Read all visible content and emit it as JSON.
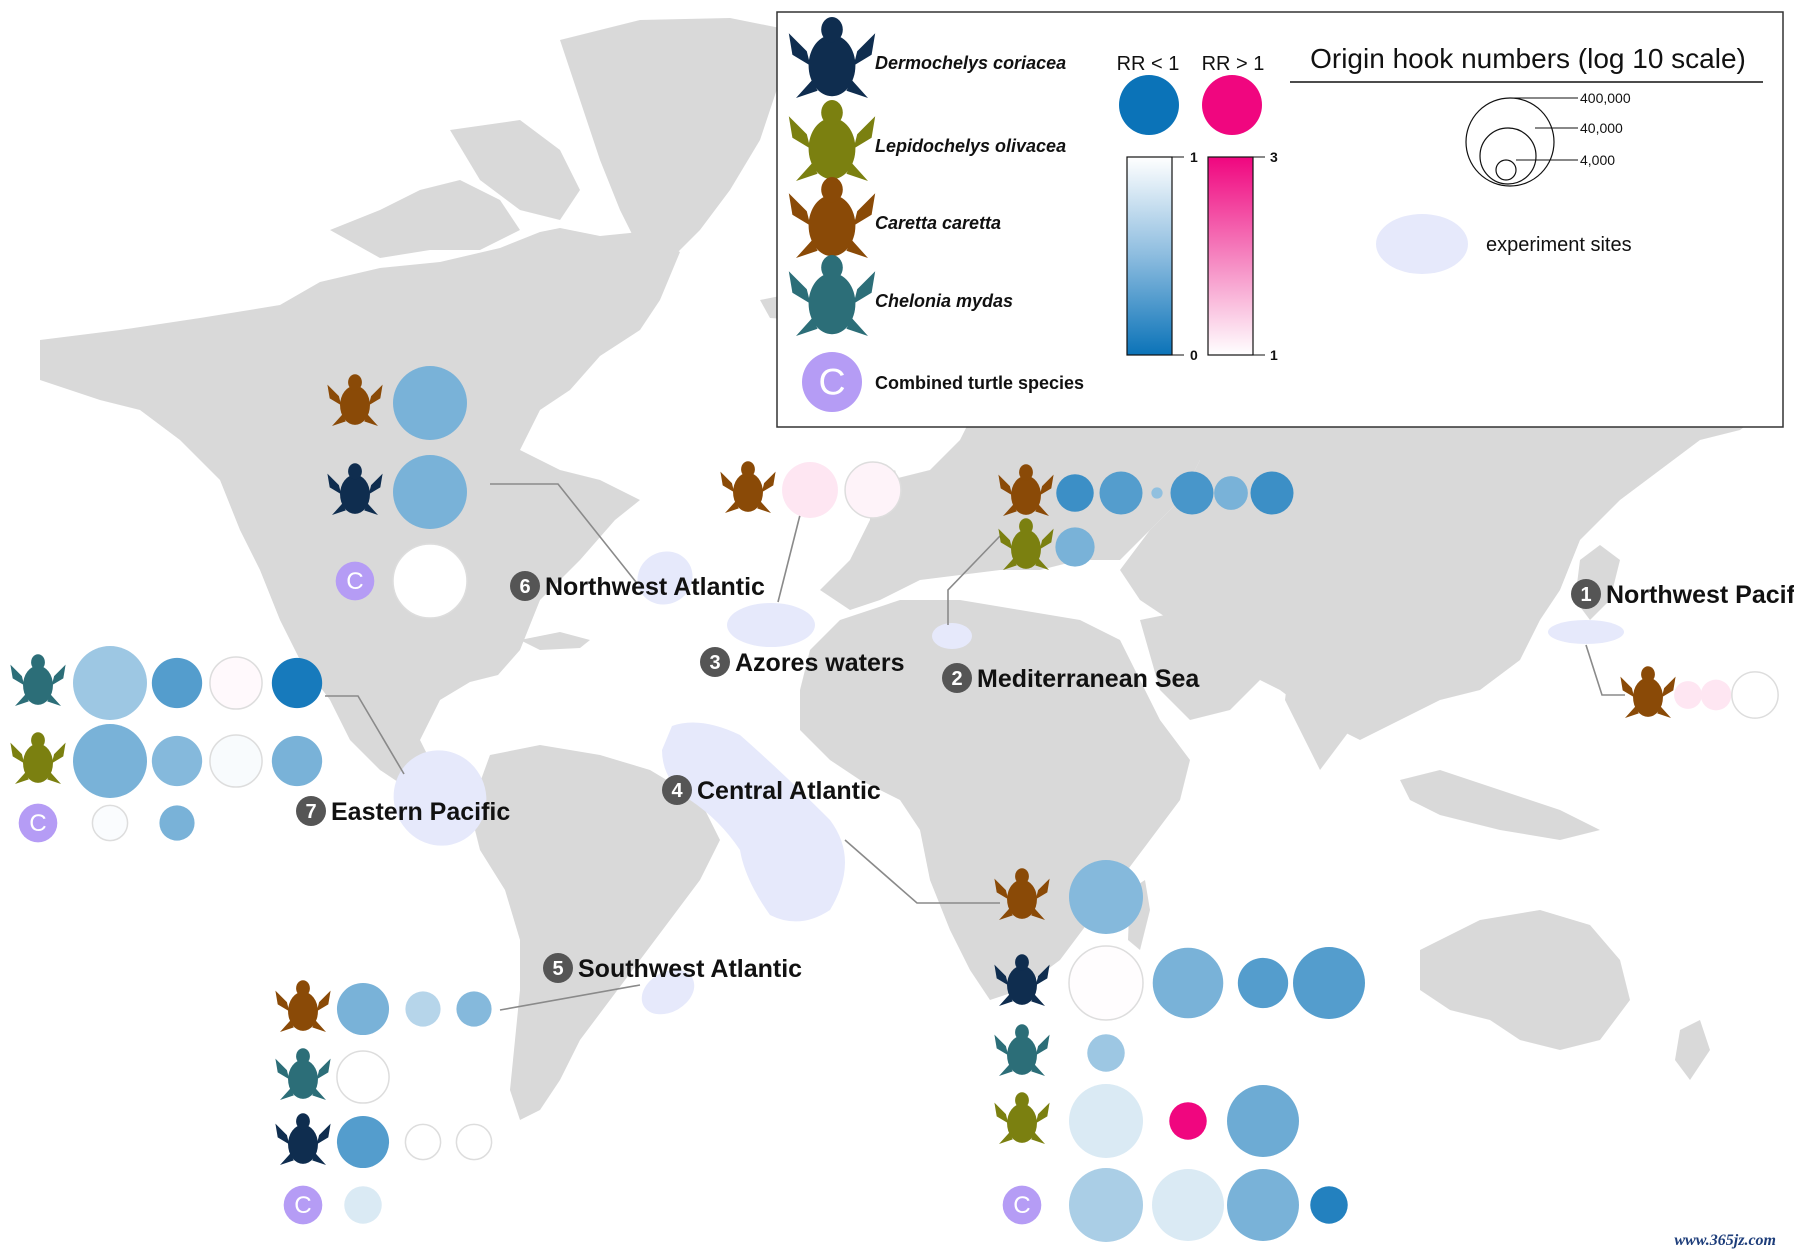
{
  "colors": {
    "land": "#d9d9d9",
    "experiment_site": "#e6e9fb",
    "leader_line": "#8a8a8a",
    "rr_low": "#0b73b8",
    "rr_high": "#f0067f",
    "combined": "#b59cf5",
    "species": {
      "dermochelys": "#0f2d4f",
      "lepidochelys": "#7b8010",
      "caretta": "#8a4a07",
      "chelonia": "#2c6e78"
    }
  },
  "legend": {
    "species": [
      {
        "key": "dermochelys",
        "label": "Dermochelys coriacea"
      },
      {
        "key": "lepidochelys",
        "label": "Lepidochelys olivacea"
      },
      {
        "key": "caretta",
        "label": "Caretta caretta"
      },
      {
        "key": "chelonia",
        "label": "Chelonia mydas"
      },
      {
        "key": "combined",
        "label": "Combined turtle species"
      }
    ],
    "rr_low_label": "RR < 1",
    "rr_high_label": "RR > 1",
    "low_scale_top": "1",
    "low_scale_bottom": "0",
    "high_scale_top": "3",
    "high_scale_bottom": "1",
    "size_title": "Origin hook numbers (log 10 scale)",
    "size_values": [
      "400,000",
      "40,000",
      "4,000"
    ],
    "experiment_label": "experiment sites",
    "combined_letter": "C"
  },
  "regions": [
    {
      "number": "1",
      "name": "Northwest Pacific"
    },
    {
      "number": "2",
      "name": "Mediterranean Sea"
    },
    {
      "number": "3",
      "name": "Azores waters"
    },
    {
      "number": "4",
      "name": "Central Atlantic"
    },
    {
      "number": "5",
      "name": "Southwest Atlantic"
    },
    {
      "number": "6",
      "name": "Northwest Atlantic"
    },
    {
      "number": "7",
      "name": "Eastern Pacific"
    }
  ],
  "chart_data": {
    "type": "bubble-map",
    "size_encoding": "origin hook numbers (log 10 scale)",
    "color_encoding": "risk ratio (RR)",
    "groups": [
      {
        "region": "Northwest Atlantic",
        "rows": [
          {
            "species": "caretta",
            "points": [
              {
                "rr": 0.45,
                "hooks": 400000
              }
            ]
          },
          {
            "species": "dermochelys",
            "points": [
              {
                "rr": 0.45,
                "hooks": 400000
              }
            ]
          },
          {
            "species": "combined",
            "points": [
              {
                "rr": 1.0,
                "hooks": 400000
              }
            ]
          }
        ]
      },
      {
        "region": "Azores waters",
        "rows": [
          {
            "species": "caretta",
            "points": [
              {
                "rr": 1.2,
                "hooks": 40000
              },
              {
                "rr": 1.1,
                "hooks": 40000
              }
            ]
          }
        ]
      },
      {
        "region": "Mediterranean Sea",
        "rows": [
          {
            "species": "caretta",
            "points": [
              {
                "rr": 0.2,
                "hooks": 4000
              },
              {
                "rr": 0.3,
                "hooks": 8000
              },
              {
                "rr": 0.55,
                "hooks": 150
              },
              {
                "rr": 0.25,
                "hooks": 8000
              },
              {
                "rr": 0.45,
                "hooks": 2500
              },
              {
                "rr": 0.2,
                "hooks": 8000
              }
            ]
          },
          {
            "species": "lepidochelys",
            "points": [
              {
                "rr": 0.45,
                "hooks": 5000
              }
            ]
          }
        ]
      },
      {
        "region": "Northwest Pacific",
        "rows": [
          {
            "species": "caretta",
            "points": [
              {
                "rr": 1.2,
                "hooks": 1200
              },
              {
                "rr": 1.2,
                "hooks": 1700
              },
              {
                "rr": 1.0,
                "hooks": 12000
              }
            ]
          }
        ]
      },
      {
        "region": "Eastern Pacific",
        "rows": [
          {
            "species": "chelonia",
            "points": [
              {
                "rr": 0.6,
                "hooks": 400000
              },
              {
                "rr": 0.3,
                "hooks": 20000
              },
              {
                "rr": 1.05,
                "hooks": 25000
              },
              {
                "rr": 0.05,
                "hooks": 20000
              }
            ]
          },
          {
            "species": "lepidochelys",
            "points": [
              {
                "rr": 0.45,
                "hooks": 400000
              },
              {
                "rr": 0.5,
                "hooks": 20000
              },
              {
                "rr": 0.97,
                "hooks": 25000
              },
              {
                "rr": 0.45,
                "hooks": 20000
              }
            ]
          },
          {
            "species": "combined",
            "points": [
              {
                "rr": 0.98,
                "hooks": 3000
              },
              {
                "rr": 0.45,
                "hooks": 3000
              }
            ]
          }
        ]
      },
      {
        "region": "Central Atlantic",
        "rows": [
          {
            "species": "caretta",
            "points": [
              {
                "rr": 0.5,
                "hooks": 400000
              }
            ]
          },
          {
            "species": "dermochelys",
            "points": [
              {
                "rr": 1.02,
                "hooks": 400000
              },
              {
                "rr": 0.45,
                "hooks": 250000
              },
              {
                "rr": 0.3,
                "hooks": 20000
              },
              {
                "rr": 0.3,
                "hooks": 300000
              }
            ]
          },
          {
            "species": "chelonia",
            "points": [
              {
                "rr": 0.6,
                "hooks": 4000
              }
            ]
          },
          {
            "species": "lepidochelys",
            "points": [
              {
                "rr": 0.85,
                "hooks": 400000
              },
              {
                "rr": 3.0,
                "hooks": 4000
              },
              {
                "rr": 0.4,
                "hooks": 300000
              }
            ]
          },
          {
            "species": "combined",
            "points": [
              {
                "rr": 0.65,
                "hooks": 400000
              },
              {
                "rr": 0.85,
                "hooks": 300000
              },
              {
                "rr": 0.45,
                "hooks": 300000
              },
              {
                "rr": 0.1,
                "hooks": 4000
              }
            ]
          }
        ]
      },
      {
        "region": "Southwest Atlantic",
        "rows": [
          {
            "species": "caretta",
            "points": [
              {
                "rr": 0.45,
                "hooks": 25000
              },
              {
                "rr": 0.7,
                "hooks": 3000
              },
              {
                "rr": 0.5,
                "hooks": 3000
              }
            ]
          },
          {
            "species": "chelonia",
            "points": [
              {
                "rr": 1.0,
                "hooks": 25000
              }
            ]
          },
          {
            "species": "dermochelys",
            "points": [
              {
                "rr": 0.3,
                "hooks": 25000
              },
              {
                "rr": 1.0,
                "hooks": 3000
              },
              {
                "rr": 1.0,
                "hooks": 3000
              }
            ]
          },
          {
            "species": "combined",
            "points": [
              {
                "rr": 0.85,
                "hooks": 4000
              }
            ]
          }
        ]
      }
    ]
  }
}
